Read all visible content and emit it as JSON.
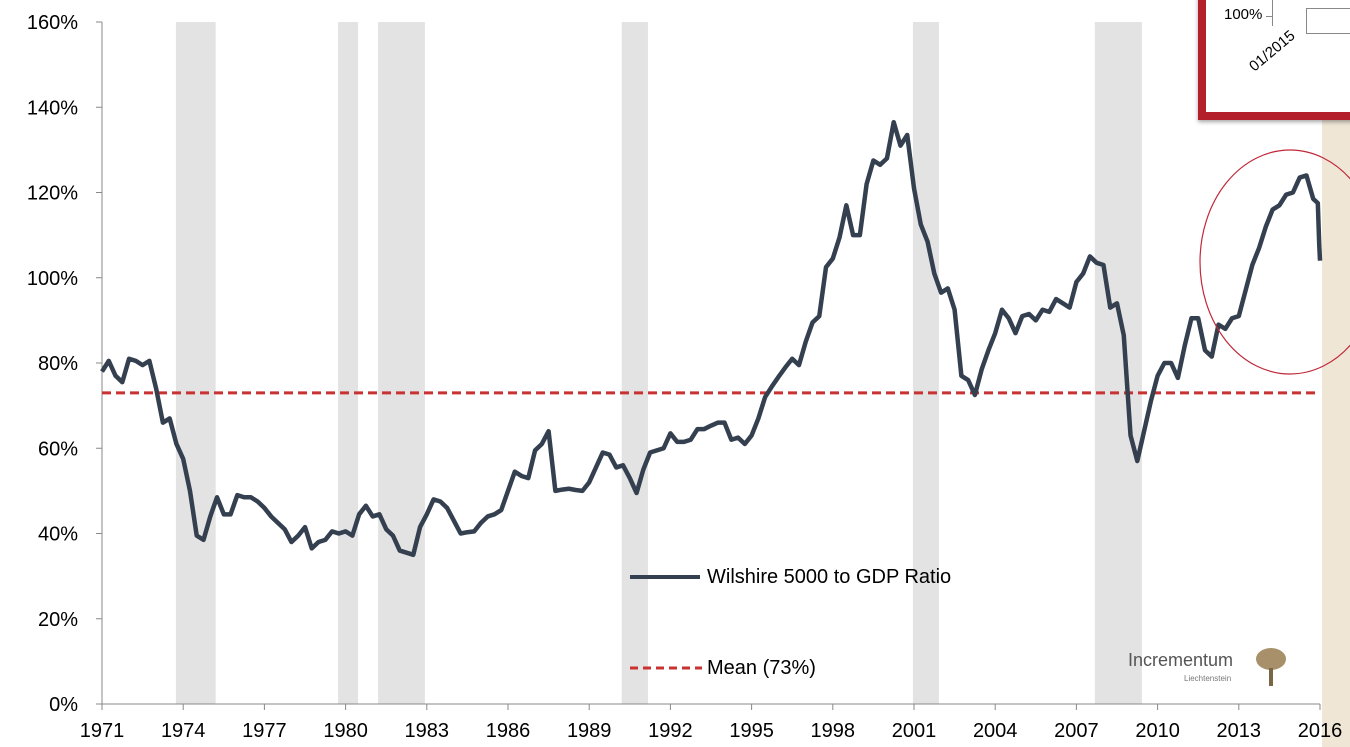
{
  "chart_data": {
    "type": "line",
    "xlim": [
      1971,
      2016
    ],
    "xticks": [
      1971,
      1974,
      1977,
      1980,
      1983,
      1986,
      1989,
      1992,
      1995,
      1998,
      2001,
      2004,
      2007,
      2010,
      2013,
      2016
    ],
    "ylim": [
      0,
      160
    ],
    "yticks": [
      {
        "value": 0,
        "label": "0%"
      },
      {
        "value": 20,
        "label": "20%"
      },
      {
        "value": 40,
        "label": "40%"
      },
      {
        "value": 60,
        "label": "60%"
      },
      {
        "value": 80,
        "label": "80%"
      },
      {
        "value": 100,
        "label": "100%"
      },
      {
        "value": 120,
        "label": "120%"
      },
      {
        "value": 140,
        "label": "140%"
      },
      {
        "value": 160,
        "label": "160%"
      }
    ],
    "shaded_spans": [
      [
        1973.73,
        1975.2
      ],
      [
        1979.72,
        1980.46
      ],
      [
        1981.2,
        1982.93
      ],
      [
        1990.2,
        1991.17
      ],
      [
        2000.96,
        2001.92
      ],
      [
        2007.68,
        2009.42
      ]
    ],
    "shade_color": "#e3e3e3",
    "x": [
      1971,
      1971.25,
      1971.5,
      1971.75,
      1972,
      1972.25,
      1972.5,
      1972.75,
      1973,
      1973.25,
      1973.5,
      1973.75,
      1974,
      1974.25,
      1974.5,
      1974.75,
      1975,
      1975.25,
      1975.5,
      1975.75,
      1976,
      1976.25,
      1976.5,
      1976.75,
      1977,
      1977.25,
      1977.5,
      1977.75,
      1978,
      1978.25,
      1978.5,
      1978.75,
      1979,
      1979.25,
      1979.5,
      1979.75,
      1980,
      1980.25,
      1980.5,
      1980.75,
      1981,
      1981.25,
      1981.5,
      1981.75,
      1982,
      1982.25,
      1982.5,
      1982.75,
      1983,
      1983.25,
      1983.5,
      1983.75,
      1984,
      1984.25,
      1984.5,
      1984.75,
      1985,
      1985.25,
      1985.5,
      1985.75,
      1986,
      1986.25,
      1986.5,
      1986.75,
      1987,
      1987.25,
      1987.5,
      1987.75,
      1988,
      1988.25,
      1988.5,
      1988.75,
      1989,
      1989.25,
      1989.5,
      1989.75,
      1990,
      1990.25,
      1990.5,
      1990.75,
      1991,
      1991.25,
      1991.5,
      1991.75,
      1992,
      1992.25,
      1992.5,
      1992.75,
      1993,
      1993.25,
      1993.5,
      1993.75,
      1994,
      1994.25,
      1994.5,
      1994.75,
      1995,
      1995.25,
      1995.5,
      1995.75,
      1996,
      1996.25,
      1996.5,
      1996.75,
      1997,
      1997.25,
      1997.5,
      1997.75,
      1998,
      1998.25,
      1998.5,
      1998.75,
      1999,
      1999.25,
      1999.5,
      1999.75,
      2000,
      2000.25,
      2000.5,
      2000.75,
      2001,
      2001.25,
      2001.5,
      2001.75,
      2002,
      2002.25,
      2002.5,
      2002.75,
      2003,
      2003.25,
      2003.5,
      2003.75,
      2004,
      2004.25,
      2004.5,
      2004.75,
      2005,
      2005.25,
      2005.5,
      2005.75,
      2006,
      2006.25,
      2006.5,
      2006.75,
      2007,
      2007.25,
      2007.5,
      2007.75,
      2008,
      2008.25,
      2008.5,
      2008.75,
      2009,
      2009.25,
      2009.5,
      2009.75,
      2010,
      2010.25,
      2010.5,
      2010.75,
      2011,
      2011.25,
      2011.5,
      2011.75,
      2012,
      2012.25,
      2012.5,
      2012.75,
      2013,
      2013.25,
      2013.5,
      2013.75,
      2014,
      2014.25,
      2014.5,
      2014.75,
      2015,
      2015.25,
      2015.5,
      2015.75,
      2015.92,
      2015.97,
      2016
    ],
    "series": [
      {
        "name": "Wilshire 5000 to GDP Ratio",
        "color": "#34404f",
        "values": [
          78,
          80.5,
          77,
          75.5,
          81,
          80.5,
          79.5,
          80.5,
          74,
          66,
          67,
          61,
          57.5,
          50,
          39.5,
          38.5,
          44,
          48.5,
          44.5,
          44.5,
          49,
          48.5,
          48.5,
          47.5,
          46,
          44,
          42.5,
          41,
          38,
          39.5,
          41.5,
          36.5,
          38,
          38.5,
          40.5,
          40,
          40.5,
          39.5,
          44.5,
          46.5,
          44,
          44.5,
          41,
          39.5,
          36,
          35.5,
          35,
          41.5,
          44.5,
          48,
          47.5,
          46,
          43,
          40,
          40.3,
          40.5,
          42.5,
          44,
          44.5,
          45.5,
          50,
          54.5,
          53.5,
          53,
          59.5,
          61,
          64,
          50,
          50.3,
          50.5,
          50.2,
          50,
          52,
          55.5,
          59,
          58.5,
          55.5,
          56,
          53,
          49.5,
          55,
          59,
          59.5,
          60,
          63.5,
          61.5,
          61.5,
          62,
          64.5,
          64.5,
          65.3,
          66,
          66,
          62,
          62.5,
          61,
          63,
          67,
          72,
          74.5,
          76.8,
          79,
          81,
          79.5,
          85,
          89.5,
          91,
          102.5,
          104.5,
          109.5,
          117,
          110,
          110,
          122,
          127.5,
          126.5,
          128,
          136.5,
          131,
          133.5,
          121,
          112.5,
          108.5,
          101,
          96.5,
          97.5,
          92.5,
          77,
          76,
          72.5,
          78.5,
          83,
          87,
          92.5,
          90.5,
          87,
          91,
          91.5,
          90,
          92.5,
          92,
          95,
          94,
          93,
          99,
          101,
          105,
          103.5,
          103,
          93,
          94,
          86.5,
          63,
          57,
          64,
          71,
          77,
          80,
          80,
          76.5,
          84,
          90.5,
          90.5,
          83,
          81.5,
          89,
          88,
          90.5,
          91,
          97,
          103,
          107,
          112,
          116,
          117,
          119.5,
          120,
          123.5,
          124,
          118.5,
          117.5,
          108,
          104
        ]
      }
    ],
    "mean_line": {
      "name": "Mean (73%)",
      "value": 73,
      "color": "#c83232"
    },
    "inset": {
      "y_label": "100%",
      "x_label": "01/2015"
    },
    "logo": {
      "name": "Incrementum",
      "sub": "Liechtenstein"
    }
  }
}
